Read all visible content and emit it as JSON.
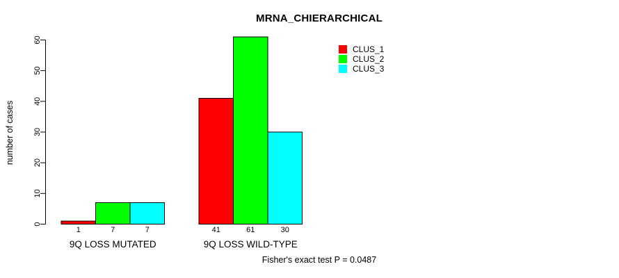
{
  "title": "MRNA_CHIERARCHICAL",
  "y_axis": {
    "label": "number of cases"
  },
  "x_axis": {
    "categories": [
      "9Q LOSS MUTATED",
      "9Q LOSS WILD-TYPE"
    ]
  },
  "legend": {
    "items": [
      {
        "label": "CLUS_1",
        "color": "#ff0000"
      },
      {
        "label": "CLUS_2",
        "color": "#00ff00"
      },
      {
        "label": "CLUS_3",
        "color": "#00ffff"
      }
    ]
  },
  "annotation": "Fisher's exact test P = 0.0487",
  "chart_data": {
    "type": "bar",
    "title": "MRNA_CHIERARCHICAL",
    "ylabel": "number of cases",
    "xlabel": "",
    "categories": [
      "9Q LOSS MUTATED",
      "9Q LOSS WILD-TYPE"
    ],
    "series": [
      {
        "name": "CLUS_1",
        "color": "#ff0000",
        "values": [
          1,
          41
        ]
      },
      {
        "name": "CLUS_2",
        "color": "#00ff00",
        "values": [
          7,
          61
        ]
      },
      {
        "name": "CLUS_3",
        "color": "#00ffff",
        "values": [
          7,
          30
        ]
      }
    ],
    "bar_value_labels": [
      [
        "1",
        "7",
        "7"
      ],
      [
        "41",
        "61",
        "30"
      ]
    ],
    "yticks": [
      0,
      10,
      20,
      30,
      40,
      50,
      60
    ],
    "ylim": [
      0,
      61
    ],
    "bar_border_color": "#000000",
    "grid": false,
    "legend_position": "top-right",
    "annotation": "Fisher's exact test P = 0.0487"
  }
}
